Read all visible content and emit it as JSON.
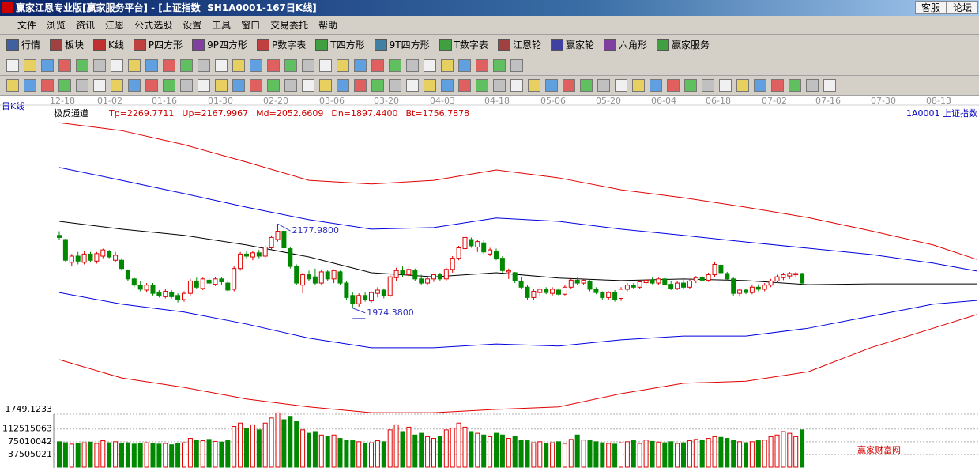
{
  "window": {
    "title": "赢家江恩专业版[赢家服务平台] - [上证指数  SH1A0001-167日K线]",
    "buttons": [
      "客服",
      "论坛"
    ]
  },
  "menu": [
    "文件",
    "浏览",
    "资讯",
    "江恩",
    "公式选股",
    "设置",
    "工具",
    "窗口",
    "交易委托",
    "帮助"
  ],
  "toolbar": [
    "行情",
    "板块",
    "K线",
    "P四方形",
    "9P四方形",
    "P数字表",
    "T四方形",
    "9T四方形",
    "T数字表",
    "江恩轮",
    "赢家轮",
    "六角形",
    "赢家服务"
  ],
  "chart_data": {
    "type": "candlestick",
    "period_label": "日K线",
    "indicator": "极反通道",
    "indicator_values": [
      {
        "value": 2269.7711,
        "label": "Tp=2269.7711"
      },
      {
        "value": 2167.9967,
        "label": "Up=2167.9967"
      },
      {
        "value": 2052.6609,
        "label": "Md=2052.6609"
      },
      {
        "value": 1897.44,
        "label": "Dn=1897.4400"
      },
      {
        "value": 1756.7878,
        "label": "Bt=1756.7878"
      }
    ],
    "symbol": "1A0001  上证指数",
    "dates": [
      "12-18",
      "01-02",
      "01-16",
      "01-30",
      "02-20",
      "03-06",
      "03-20",
      "04-03",
      "04-18",
      "05-06",
      "05-20",
      "06-04",
      "06-18",
      "07-02",
      "07-16",
      "07-30",
      "08-13"
    ],
    "ylim": [
      1726,
      2432
    ],
    "up_color": "#e00000",
    "down_color": "#008800",
    "candles": {
      "open": [
        2150,
        2140,
        2085,
        2100,
        2085,
        2105,
        2088,
        2100,
        2112,
        2090,
        2090,
        2065,
        2045,
        2030,
        2018,
        2030,
        2012,
        2002,
        2012,
        2005,
        1995,
        2010,
        2040,
        2022,
        2042,
        2032,
        2045,
        2035,
        2020,
        2070,
        2105,
        2098,
        2108,
        2100,
        2120,
        2140,
        2160,
        2118,
        2075,
        2030,
        2055,
        2050,
        2035,
        2062,
        2045,
        2062,
        2035,
        2005,
        1985,
        2005,
        1992,
        2010,
        2018,
        2005,
        2048,
        2065,
        2055,
        2065,
        2045,
        2035,
        2045,
        2055,
        2045,
        2068,
        2095,
        2118,
        2140,
        2122,
        2132,
        2105,
        2112,
        2095,
        2062,
        2060,
        2040,
        2025,
        2000,
        2012,
        2020,
        2010,
        2018,
        2008,
        2025,
        2042,
        2035,
        2040,
        2020,
        2012,
        2000,
        2012,
        1998,
        2020,
        2030,
        2025,
        2036,
        2042,
        2035,
        2045,
        2032,
        2022,
        2035,
        2025,
        2040,
        2048,
        2042,
        2055,
        2078,
        2058,
        2045,
        2010,
        2018,
        2012,
        2025,
        2020,
        2030,
        2040,
        2048,
        2052,
        2055,
        2058
      ],
      "high": [
        2160,
        2142,
        2105,
        2110,
        2112,
        2110,
        2110,
        2118,
        2115,
        2110,
        2095,
        2068,
        2050,
        2040,
        2035,
        2035,
        2018,
        2020,
        2018,
        2010,
        2015,
        2045,
        2048,
        2048,
        2048,
        2050,
        2050,
        2040,
        2075,
        2110,
        2112,
        2112,
        2115,
        2125,
        2150,
        2177.98,
        2165,
        2122,
        2080,
        2060,
        2065,
        2070,
        2068,
        2066,
        2068,
        2065,
        2040,
        2012,
        2010,
        2012,
        2015,
        2025,
        2022,
        2055,
        2072,
        2075,
        2075,
        2070,
        2055,
        2050,
        2058,
        2060,
        2072,
        2100,
        2125,
        2150,
        2145,
        2140,
        2138,
        2120,
        2118,
        2100,
        2070,
        2062,
        2050,
        2030,
        2020,
        2025,
        2025,
        2025,
        2022,
        2030,
        2045,
        2048,
        2046,
        2042,
        2025,
        2015,
        2015,
        2018,
        2025,
        2035,
        2035,
        2042,
        2045,
        2048,
        2048,
        2048,
        2040,
        2040,
        2042,
        2045,
        2052,
        2052,
        2060,
        2085,
        2082,
        2062,
        2050,
        2022,
        2022,
        2030,
        2032,
        2035,
        2045,
        2055,
        2060,
        2062,
        2062,
        2060
      ],
      "low": [
        2140,
        2085,
        2075,
        2080,
        2080,
        2085,
        2082,
        2095,
        2095,
        2085,
        2065,
        2040,
        2025,
        2015,
        2012,
        2005,
        2000,
        1998,
        1998,
        1988,
        1990,
        2005,
        2020,
        2018,
        2030,
        2028,
        2030,
        2012,
        2015,
        2065,
        2095,
        2090,
        2095,
        2095,
        2115,
        2135,
        2115,
        2070,
        2030,
        2010,
        2040,
        2030,
        2030,
        2040,
        2035,
        2030,
        1995,
        1974.38,
        1978,
        1990,
        1988,
        2000,
        1998,
        2000,
        2040,
        2050,
        2048,
        2040,
        2030,
        2030,
        2038,
        2040,
        2040,
        2060,
        2090,
        2110,
        2120,
        2110,
        2105,
        2100,
        2090,
        2060,
        2045,
        2035,
        2020,
        1995,
        1995,
        2005,
        2008,
        2005,
        2005,
        2005,
        2020,
        2030,
        2030,
        2015,
        2008,
        1995,
        1995,
        1990,
        1992,
        2015,
        2020,
        2020,
        2030,
        2032,
        2030,
        2030,
        2018,
        2018,
        2020,
        2020,
        2035,
        2040,
        2038,
        2050,
        2055,
        2040,
        2005,
        2002,
        2008,
        2008,
        2015,
        2015,
        2025,
        2035,
        2042,
        2045,
        2050,
        2030
      ],
      "close": [
        2145,
        2090,
        2100,
        2088,
        2105,
        2090,
        2106,
        2115,
        2098,
        2102,
        2070,
        2045,
        2030,
        2020,
        2030,
        2010,
        2005,
        2015,
        2002,
        1995,
        2010,
        2040,
        2025,
        2045,
        2035,
        2045,
        2038,
        2018,
        2070,
        2105,
        2100,
        2108,
        2100,
        2122,
        2145,
        2160,
        2120,
        2075,
        2035,
        2055,
        2045,
        2035,
        2062,
        2045,
        2065,
        2035,
        2000,
        1985,
        2005,
        1995,
        2012,
        2018,
        2005,
        2050,
        2065,
        2058,
        2068,
        2045,
        2035,
        2045,
        2055,
        2045,
        2068,
        2095,
        2120,
        2145,
        2125,
        2135,
        2110,
        2115,
        2095,
        2065,
        2065,
        2040,
        2025,
        2000,
        2015,
        2020,
        2012,
        2020,
        2008,
        2025,
        2042,
        2035,
        2042,
        2020,
        2012,
        2000,
        2012,
        1995,
        2020,
        2030,
        2025,
        2038,
        2042,
        2035,
        2045,
        2032,
        2022,
        2035,
        2025,
        2040,
        2048,
        2042,
        2055,
        2080,
        2060,
        2045,
        2010,
        2018,
        2012,
        2025,
        2020,
        2030,
        2040,
        2050,
        2055,
        2058,
        2058,
        2035
      ]
    },
    "channel": {
      "x": [
        0,
        10,
        20,
        30,
        40,
        50,
        60,
        70,
        80,
        90,
        100,
        110,
        120,
        130,
        140,
        147
      ],
      "lines": [
        {
          "color": "#e00000",
          "values": [
            2422,
            2403,
            2369,
            2327,
            2283,
            2274,
            2283,
            2308,
            2289,
            2260,
            2241,
            2218,
            2193,
            2161,
            2127,
            2092
          ]
        },
        {
          "color": "#0000e0",
          "values": [
            2314,
            2283,
            2251,
            2218,
            2188,
            2165,
            2169,
            2192,
            2184,
            2165,
            2150,
            2134,
            2119,
            2104,
            2083,
            2064
          ]
        },
        {
          "color": "#000000",
          "values": [
            2184,
            2165,
            2150,
            2127,
            2098,
            2060,
            2050,
            2060,
            2047,
            2041,
            2045,
            2041,
            2031,
            2033,
            2033,
            2033
          ]
        },
        {
          "color": "#0000e0",
          "values": [
            2012,
            1984,
            1965,
            1936,
            1902,
            1879,
            1879,
            1888,
            1883,
            1898,
            1907,
            1907,
            1926,
            1955,
            1984,
            1993
          ]
        },
        {
          "color": "#e00000",
          "values": [
            1850,
            1806,
            1783,
            1755,
            1736,
            1722,
            1722,
            1730,
            1736,
            1768,
            1793,
            1798,
            1821,
            1879,
            1926,
            1959
          ]
        }
      ]
    },
    "annotations": [
      {
        "value": 2177.98,
        "label": "2177.9800"
      },
      {
        "value": 1974.38,
        "label": "1974.3800"
      }
    ],
    "volume": {
      "top_label": "1749.1233",
      "ylim": [
        0,
        172560000
      ],
      "yticks": [
        37505021,
        75010042,
        112515063
      ],
      "values": [
        75000000,
        72000000,
        68000000,
        70000000,
        72000000,
        74000000,
        70000000,
        78000000,
        72000000,
        75000000,
        70000000,
        72000000,
        68000000,
        70000000,
        72000000,
        70000000,
        68000000,
        70000000,
        66000000,
        70000000,
        72000000,
        85000000,
        80000000,
        78000000,
        82000000,
        76000000,
        74000000,
        78000000,
        120000000,
        130000000,
        115000000,
        125000000,
        110000000,
        130000000,
        145000000,
        160000000,
        140000000,
        150000000,
        135000000,
        110000000,
        100000000,
        105000000,
        95000000,
        90000000,
        95000000,
        85000000,
        80000000,
        78000000,
        75000000,
        70000000,
        72000000,
        78000000,
        75000000,
        110000000,
        125000000,
        105000000,
        118000000,
        95000000,
        100000000,
        90000000,
        85000000,
        92000000,
        110000000,
        115000000,
        130000000,
        118000000,
        105000000,
        100000000,
        95000000,
        90000000,
        100000000,
        95000000,
        85000000,
        90000000,
        80000000,
        78000000,
        72000000,
        75000000,
        70000000,
        72000000,
        75000000,
        70000000,
        82000000,
        95000000,
        80000000,
        78000000,
        75000000,
        72000000,
        70000000,
        68000000,
        72000000,
        75000000,
        78000000,
        70000000,
        80000000,
        76000000,
        74000000,
        72000000,
        75000000,
        70000000,
        72000000,
        78000000,
        82000000,
        80000000,
        85000000,
        90000000,
        88000000,
        85000000,
        80000000,
        75000000,
        72000000,
        75000000,
        78000000,
        80000000,
        90000000,
        95000000,
        105000000,
        100000000,
        90000000,
        110000000
      ]
    }
  },
  "watermark": "赢家财富网"
}
